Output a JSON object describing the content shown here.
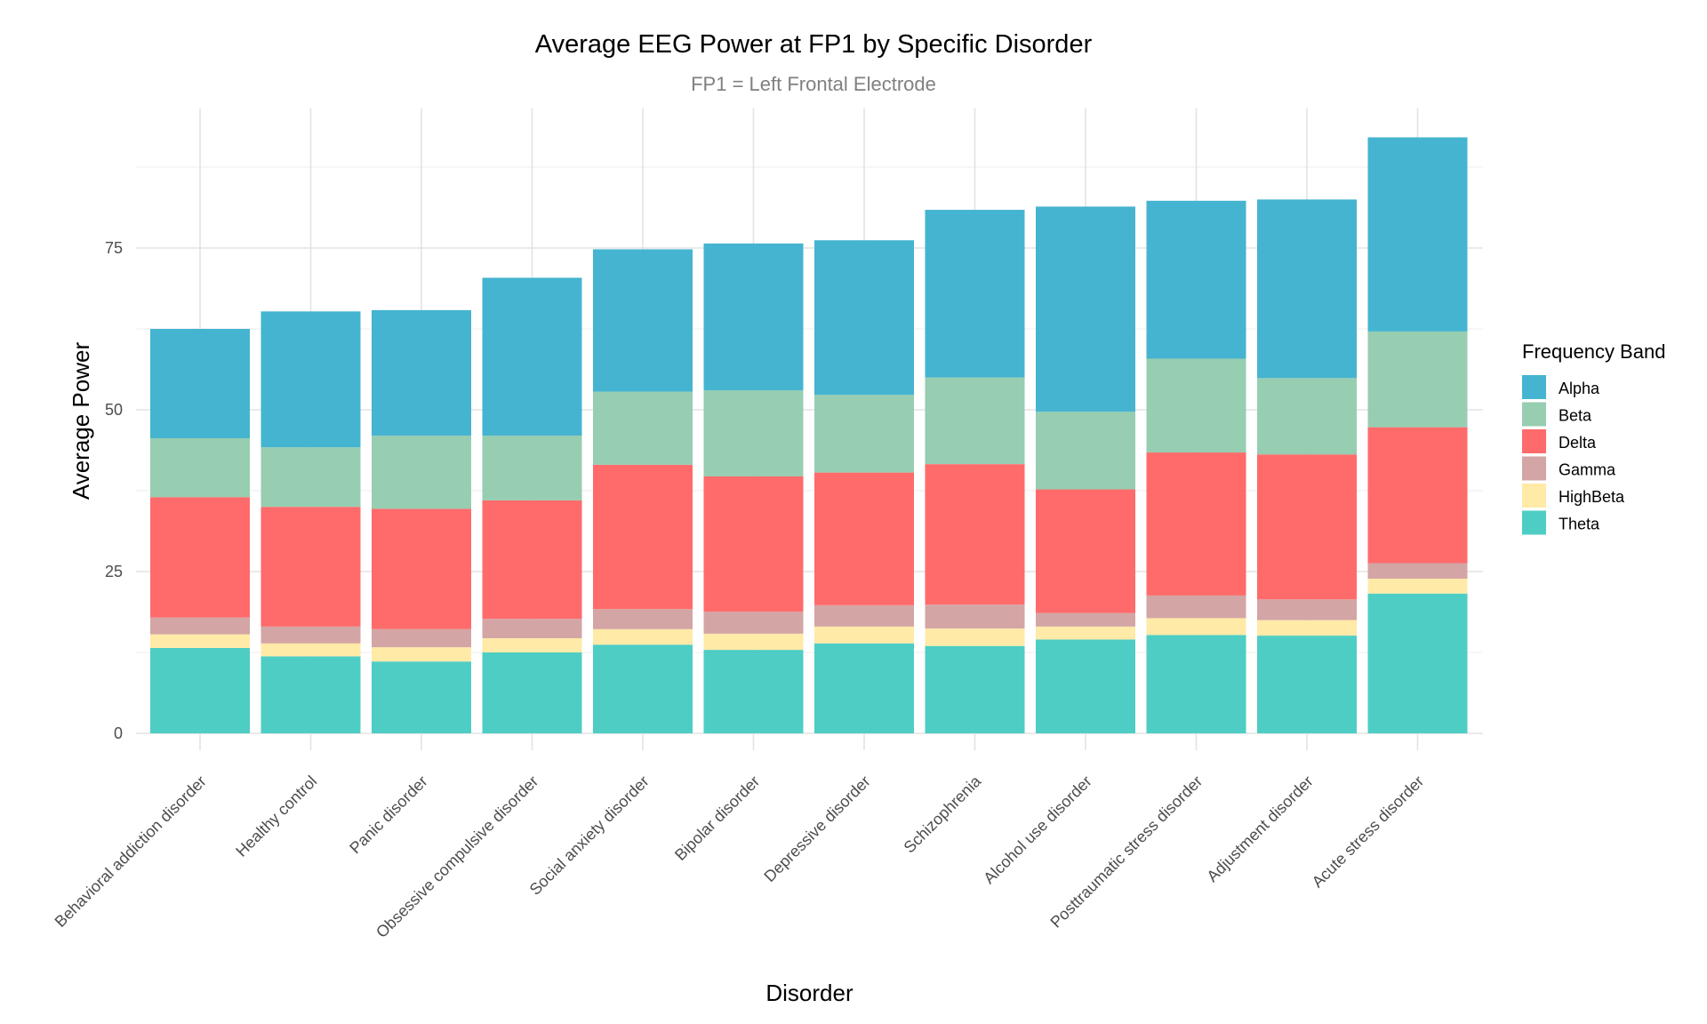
{
  "chart_data": {
    "type": "bar",
    "stacked": true,
    "title": "Average EEG Power at FP1 by Specific Disorder",
    "subtitle": "FP1 = Left Frontal Electrode",
    "xlabel": "Disorder",
    "ylabel": "Average Power",
    "ylim": [
      0,
      97
    ],
    "yticks": [
      0,
      25,
      50,
      75
    ],
    "grid": true,
    "legend": {
      "title": "Frequency Band",
      "position": "right"
    },
    "categories": [
      "Behavioral addiction disorder",
      "Healthy control",
      "Panic disorder",
      "Obsessive compulsive disorder",
      "Social anxiety disorder",
      "Bipolar disorder",
      "Depressive disorder",
      "Schizophrenia",
      "Alcohol use disorder",
      "Posttraumatic stress disorder",
      "Adjustment disorder",
      "Acute stress disorder"
    ],
    "stack_order_bottom_to_top": [
      "Theta",
      "HighBeta",
      "Gamma",
      "Delta",
      "Beta",
      "Alpha"
    ],
    "series": [
      {
        "name": "Alpha",
        "color": "#45B4D0",
        "values": [
          16.9,
          21.0,
          19.4,
          24.4,
          22.0,
          22.7,
          23.9,
          25.9,
          31.7,
          24.4,
          27.6,
          30.0
        ]
      },
      {
        "name": "Beta",
        "color": "#97CDB1",
        "values": [
          9.1,
          9.2,
          11.3,
          10.0,
          11.3,
          13.3,
          12.0,
          13.4,
          12.0,
          14.5,
          11.8,
          14.8
        ]
      },
      {
        "name": "Delta",
        "color": "#FF6B6B",
        "values": [
          18.6,
          18.5,
          18.6,
          18.3,
          22.3,
          20.9,
          20.5,
          21.7,
          19.1,
          22.1,
          22.4,
          21.0
        ]
      },
      {
        "name": "Gamma",
        "color": "#D4A5A5",
        "values": [
          2.6,
          2.6,
          2.8,
          3.0,
          3.1,
          3.4,
          3.3,
          3.7,
          2.1,
          3.5,
          3.2,
          2.4
        ]
      },
      {
        "name": "HighBeta",
        "color": "#FFEAA7",
        "values": [
          2.1,
          2.0,
          2.2,
          2.2,
          2.4,
          2.5,
          2.6,
          2.7,
          2.0,
          2.6,
          2.4,
          2.3
        ]
      },
      {
        "name": "Theta",
        "color": "#4ECDC4",
        "values": [
          13.2,
          11.9,
          11.1,
          12.5,
          13.7,
          12.9,
          13.9,
          13.5,
          14.5,
          15.2,
          15.1,
          21.6
        ]
      }
    ]
  }
}
